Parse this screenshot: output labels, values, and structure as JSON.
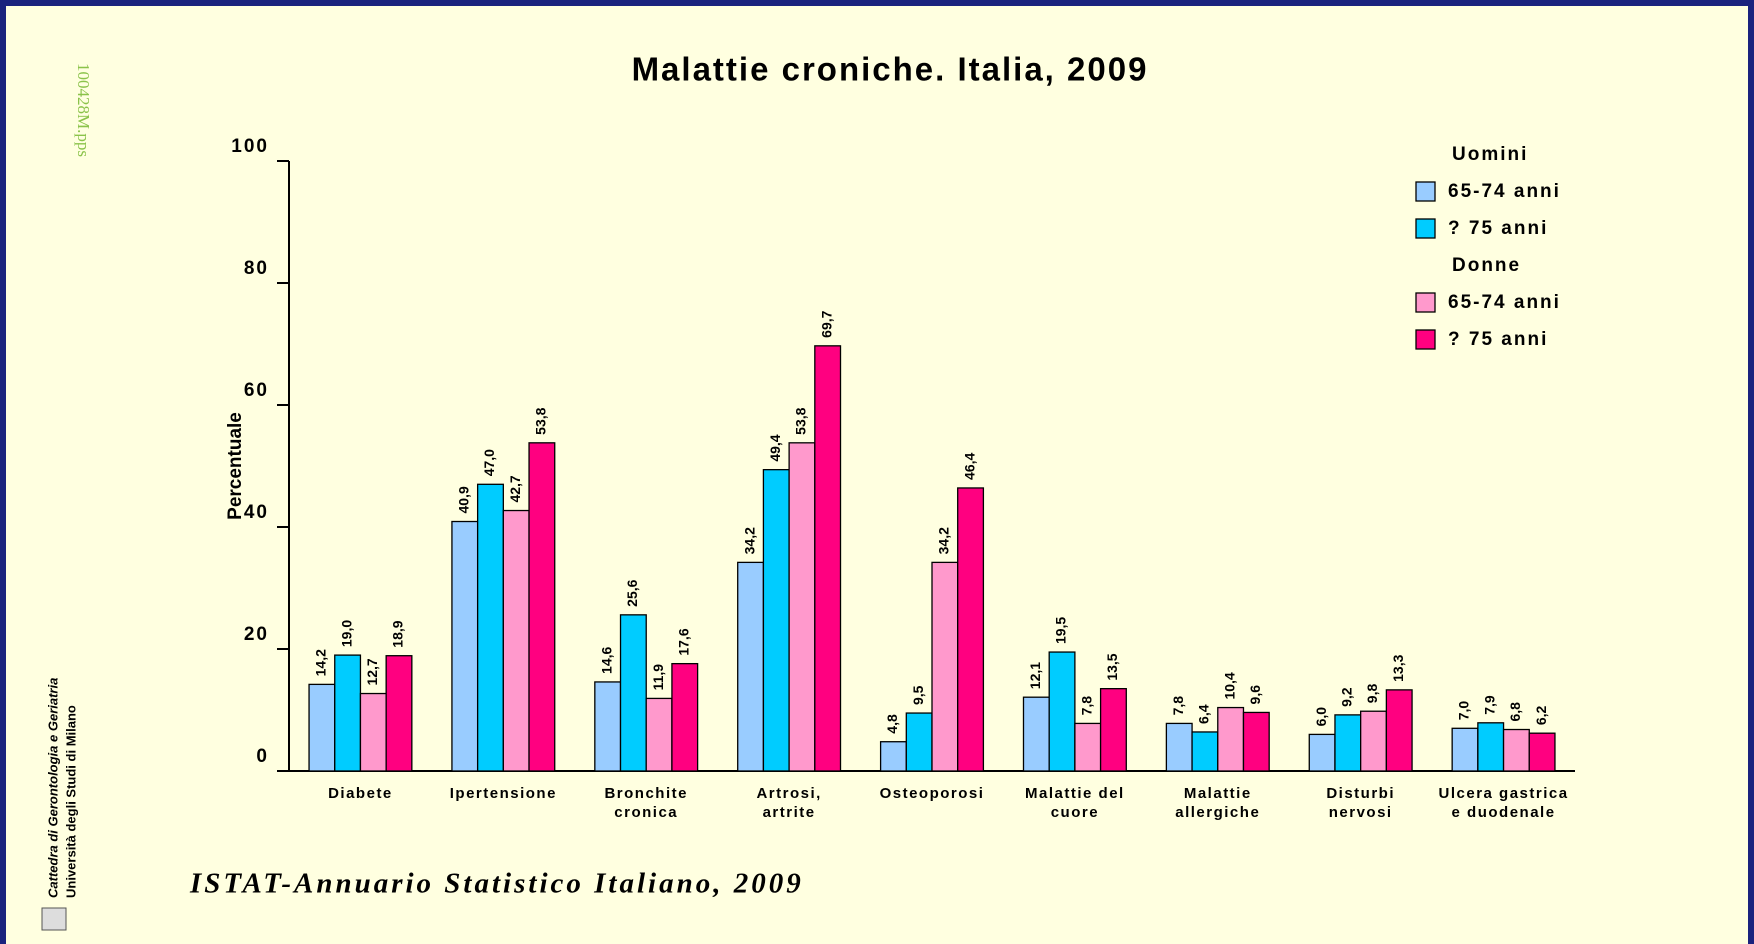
{
  "chart_data": {
    "type": "bar",
    "title": "Malattie croniche. Italia, 2009",
    "ylabel": "Percentuale",
    "categories": [
      "Diabete",
      "Ipertensione",
      "Bronchite\ncronica",
      "Artrosi,\nartrite",
      "Osteoporosi",
      "Malattie del\ncuore",
      "Malattie\nallergiche",
      "Disturbi\nnervosi",
      "Ulcera gastrica\ne duodenale"
    ],
    "legend_headings": [
      "Uomini",
      "Donne"
    ],
    "legend": "top-right",
    "series": [
      {
        "name": "65-74 anni",
        "color": "#99ccff",
        "values": [
          14.2,
          40.9,
          14.6,
          34.2,
          4.8,
          12.1,
          7.8,
          6.0,
          7.0
        ],
        "value_labels": [
          "14,2",
          "40,9",
          "14,6",
          "34,2",
          "4,8",
          "12,1",
          "7,8",
          "6,0",
          "7,0"
        ]
      },
      {
        "name": "? 75 anni",
        "color": "#00ccff",
        "values": [
          19.0,
          47.0,
          25.6,
          49.4,
          9.5,
          19.5,
          6.4,
          9.2,
          7.9
        ],
        "value_labels": [
          "19,0",
          "47,0",
          "25,6",
          "49,4",
          "9,5",
          "19,5",
          "6,4",
          "9,2",
          "7,9"
        ]
      },
      {
        "name": "65-74 anni",
        "color": "#ff99cc",
        "values": [
          12.7,
          42.7,
          11.9,
          53.8,
          34.2,
          7.8,
          10.4,
          9.8,
          6.8
        ],
        "value_labels": [
          "12,7",
          "42,7",
          "11,9",
          "53,8",
          "34,2",
          "7,8",
          "10,4",
          "9,8",
          "6,8"
        ]
      },
      {
        "name": "? 75 anni",
        "color": "#ff0080",
        "values": [
          18.9,
          53.8,
          17.6,
          69.7,
          46.4,
          13.5,
          9.6,
          13.3,
          6.2
        ],
        "value_labels": [
          "18,9",
          "53,8",
          "17,6",
          "69,7",
          "46,4",
          "13,5",
          "9,6",
          "13,3",
          "6,2"
        ]
      }
    ],
    "ylim": [
      0,
      100
    ],
    "yticks": [
      0,
      20,
      40,
      60,
      80,
      100
    ],
    "grid": false
  },
  "source": "ISTAT-Annuario Statistico Italiano, 2009",
  "side_texts": {
    "file": "100428M.pps",
    "dept": "Cattedra di Gerontologia e Geriatria",
    "university": "Università degli Studi di Milano"
  }
}
